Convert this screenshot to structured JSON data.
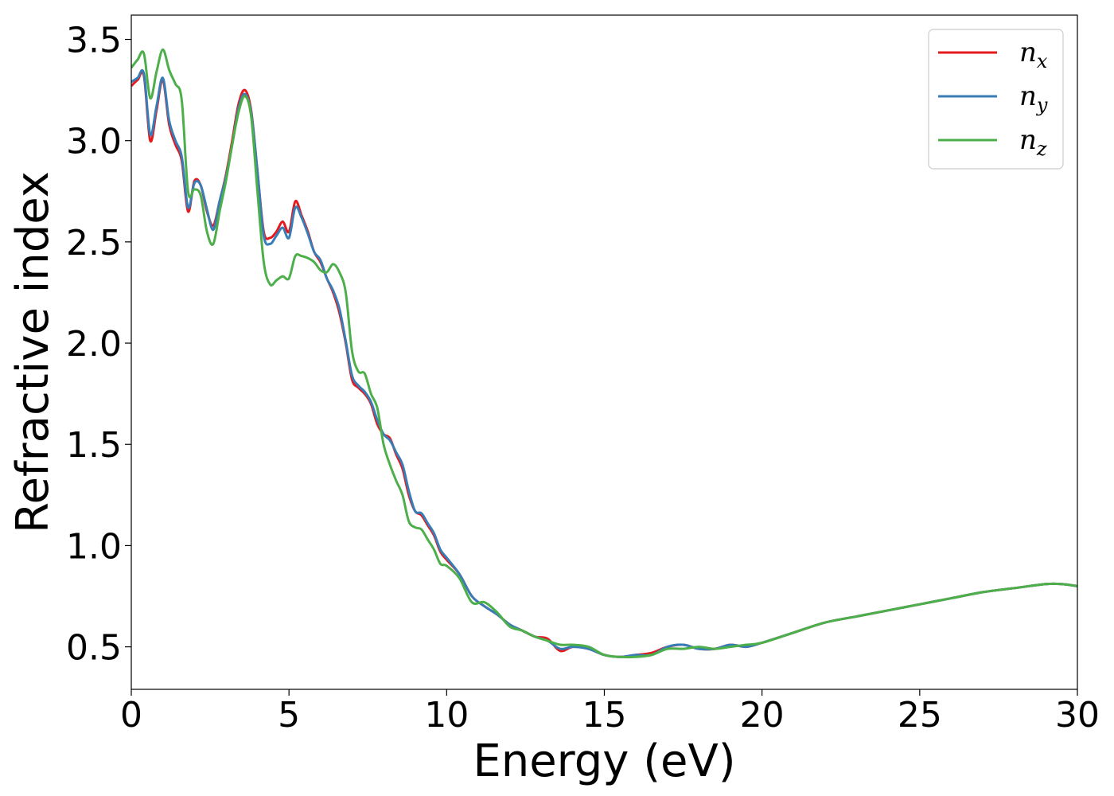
{
  "chart_data": {
    "type": "line",
    "title": "",
    "xlabel": "Energy (eV)",
    "ylabel": "Refractive index",
    "xlim": [
      0,
      30
    ],
    "ylim": [
      0.29,
      3.62
    ],
    "xticks": [
      "0",
      "5",
      "10",
      "15",
      "20",
      "25",
      "30"
    ],
    "yticks": [
      "0.5",
      "1.0",
      "1.5",
      "2.0",
      "2.5",
      "3.0",
      "3.5"
    ],
    "grid": false,
    "legend_position": "top-right",
    "series": [
      {
        "name": "n",
        "subscript": "x",
        "color": "#e41a1c",
        "x": [
          0,
          0.2,
          0.4,
          0.6,
          0.8,
          1.0,
          1.2,
          1.4,
          1.6,
          1.8,
          2.0,
          2.2,
          2.4,
          2.6,
          2.8,
          3.0,
          3.2,
          3.4,
          3.6,
          3.8,
          4.0,
          4.2,
          4.4,
          4.6,
          4.8,
          5.0,
          5.2,
          5.4,
          5.6,
          5.8,
          6.0,
          6.2,
          6.4,
          6.6,
          6.8,
          7.0,
          7.2,
          7.4,
          7.6,
          7.8,
          8.0,
          8.2,
          8.4,
          8.6,
          8.8,
          9.0,
          9.2,
          9.4,
          9.6,
          9.8,
          10.0,
          10.4,
          10.8,
          11.2,
          11.6,
          12.0,
          12.4,
          12.8,
          13.2,
          13.6,
          14.0,
          14.5,
          15.0,
          15.5,
          16.0,
          16.5,
          17.0,
          17.5,
          18.0,
          18.5,
          19.0,
          19.5,
          20.0,
          21.0,
          22.0,
          23.0,
          24.0,
          25.0,
          26.0,
          27.0,
          28.0,
          29.0,
          29.5,
          30.0
        ],
        "y": [
          3.27,
          3.3,
          3.32,
          3.0,
          3.15,
          3.3,
          3.08,
          2.98,
          2.9,
          2.65,
          2.8,
          2.78,
          2.65,
          2.58,
          2.7,
          2.83,
          3.0,
          3.18,
          3.25,
          3.15,
          2.85,
          2.55,
          2.52,
          2.55,
          2.6,
          2.55,
          2.7,
          2.63,
          2.55,
          2.45,
          2.4,
          2.32,
          2.25,
          2.15,
          2.0,
          1.82,
          1.78,
          1.75,
          1.7,
          1.6,
          1.55,
          1.53,
          1.45,
          1.38,
          1.25,
          1.17,
          1.15,
          1.1,
          1.05,
          0.97,
          0.93,
          0.86,
          0.75,
          0.7,
          0.66,
          0.61,
          0.58,
          0.55,
          0.54,
          0.48,
          0.5,
          0.49,
          0.46,
          0.45,
          0.46,
          0.47,
          0.5,
          0.51,
          0.49,
          0.49,
          0.51,
          0.5,
          0.52,
          0.57,
          0.62,
          0.65,
          0.68,
          0.71,
          0.74,
          0.77,
          0.79,
          0.81,
          0.81,
          0.8
        ]
      },
      {
        "name": "n",
        "subscript": "y",
        "color": "#377eb8",
        "x": [
          0,
          0.2,
          0.4,
          0.6,
          0.8,
          1.0,
          1.2,
          1.4,
          1.6,
          1.8,
          2.0,
          2.2,
          2.4,
          2.6,
          2.8,
          3.0,
          3.2,
          3.4,
          3.6,
          3.8,
          4.0,
          4.2,
          4.4,
          4.6,
          4.8,
          5.0,
          5.2,
          5.4,
          5.6,
          5.8,
          6.0,
          6.2,
          6.4,
          6.6,
          6.8,
          7.0,
          7.2,
          7.4,
          7.6,
          7.8,
          8.0,
          8.2,
          8.4,
          8.6,
          8.8,
          9.0,
          9.2,
          9.4,
          9.6,
          9.8,
          10.0,
          10.4,
          10.8,
          11.2,
          11.6,
          12.0,
          12.4,
          12.8,
          13.2,
          13.6,
          14.0,
          14.5,
          15.0,
          15.5,
          16.0,
          16.5,
          17.0,
          17.5,
          18.0,
          18.5,
          19.0,
          19.5,
          20.0,
          21.0,
          22.0,
          23.0,
          24.0,
          25.0,
          26.0,
          27.0,
          28.0,
          29.0,
          29.5,
          30.0
        ],
        "y": [
          3.29,
          3.31,
          3.33,
          3.03,
          3.17,
          3.31,
          3.1,
          3.0,
          2.92,
          2.67,
          2.79,
          2.78,
          2.66,
          2.56,
          2.7,
          2.82,
          2.98,
          3.16,
          3.23,
          3.14,
          2.85,
          2.53,
          2.49,
          2.53,
          2.57,
          2.52,
          2.67,
          2.62,
          2.54,
          2.45,
          2.41,
          2.32,
          2.26,
          2.17,
          2.01,
          1.84,
          1.79,
          1.76,
          1.71,
          1.62,
          1.55,
          1.52,
          1.46,
          1.4,
          1.27,
          1.17,
          1.16,
          1.11,
          1.06,
          0.98,
          0.94,
          0.86,
          0.75,
          0.7,
          0.66,
          0.61,
          0.58,
          0.55,
          0.53,
          0.49,
          0.5,
          0.49,
          0.46,
          0.45,
          0.46,
          0.46,
          0.5,
          0.51,
          0.49,
          0.49,
          0.51,
          0.5,
          0.52,
          0.57,
          0.62,
          0.65,
          0.68,
          0.71,
          0.74,
          0.77,
          0.79,
          0.81,
          0.81,
          0.8
        ]
      },
      {
        "name": "n",
        "subscript": "z",
        "color": "#4daf4a",
        "x": [
          0,
          0.2,
          0.4,
          0.6,
          0.8,
          1.0,
          1.2,
          1.4,
          1.6,
          1.8,
          2.0,
          2.2,
          2.4,
          2.6,
          2.8,
          3.0,
          3.2,
          3.4,
          3.6,
          3.8,
          4.0,
          4.2,
          4.4,
          4.6,
          4.8,
          5.0,
          5.2,
          5.4,
          5.6,
          5.8,
          6.0,
          6.2,
          6.4,
          6.6,
          6.8,
          7.0,
          7.2,
          7.4,
          7.6,
          7.8,
          8.0,
          8.2,
          8.4,
          8.6,
          8.8,
          9.0,
          9.2,
          9.4,
          9.6,
          9.8,
          10.0,
          10.4,
          10.8,
          11.2,
          11.6,
          12.0,
          12.4,
          12.8,
          13.2,
          13.6,
          14.0,
          14.5,
          15.0,
          15.5,
          16.0,
          16.5,
          17.0,
          17.5,
          18.0,
          18.5,
          19.0,
          19.5,
          20.0,
          21.0,
          22.0,
          23.0,
          24.0,
          25.0,
          26.0,
          27.0,
          28.0,
          29.0,
          29.5,
          30.0
        ],
        "y": [
          3.36,
          3.4,
          3.43,
          3.21,
          3.34,
          3.45,
          3.35,
          3.28,
          3.2,
          2.75,
          2.76,
          2.73,
          2.55,
          2.49,
          2.65,
          2.8,
          2.98,
          3.14,
          3.22,
          3.12,
          2.75,
          2.4,
          2.29,
          2.31,
          2.33,
          2.32,
          2.43,
          2.43,
          2.42,
          2.4,
          2.36,
          2.35,
          2.39,
          2.35,
          2.25,
          1.96,
          1.86,
          1.85,
          1.75,
          1.68,
          1.5,
          1.4,
          1.32,
          1.25,
          1.12,
          1.09,
          1.08,
          1.03,
          0.98,
          0.91,
          0.9,
          0.84,
          0.72,
          0.72,
          0.67,
          0.6,
          0.58,
          0.55,
          0.53,
          0.51,
          0.51,
          0.5,
          0.46,
          0.45,
          0.45,
          0.46,
          0.49,
          0.49,
          0.5,
          0.49,
          0.5,
          0.51,
          0.52,
          0.57,
          0.62,
          0.65,
          0.68,
          0.71,
          0.74,
          0.77,
          0.79,
          0.81,
          0.81,
          0.8
        ]
      }
    ]
  }
}
